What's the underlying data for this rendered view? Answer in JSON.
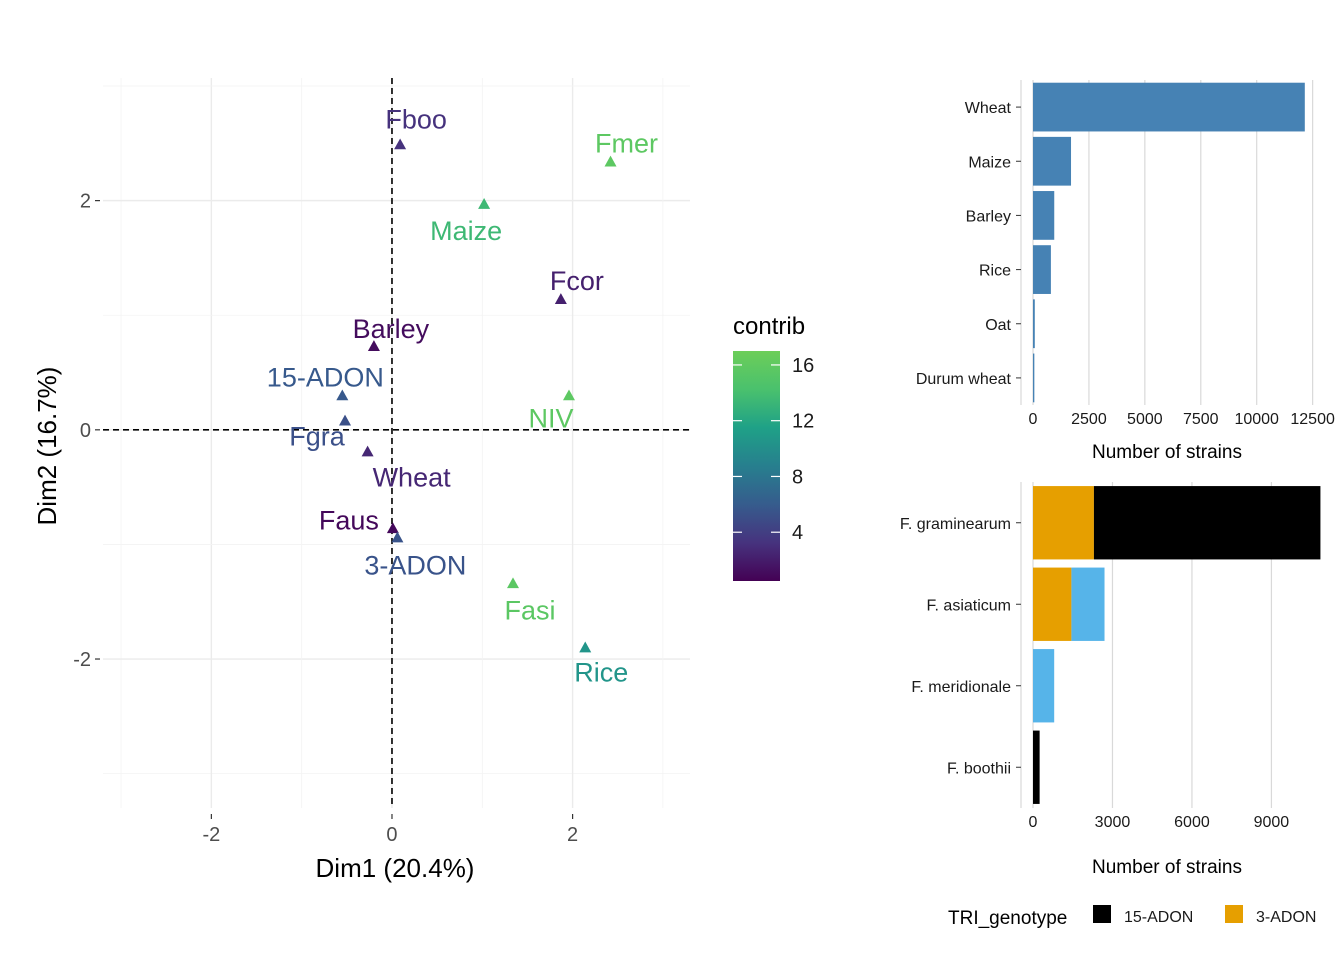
{
  "chart_data": [
    {
      "type": "scatter",
      "xlabel": "Dim1 (20.4%)",
      "ylabel": "Dim2 (16.7%)",
      "xlim": [
        -3.2,
        3.3
      ],
      "ylim": [
        -3.3,
        3.07
      ],
      "xticks": [
        -2,
        0,
        2
      ],
      "yticks": [
        -2,
        0,
        2
      ],
      "xtick_labels": [
        "-2",
        "0",
        "2"
      ],
      "ytick_labels": [
        "-2",
        "0",
        "2"
      ],
      "reference_lines": "dashed at x=0 and y=0",
      "marker": "triangle",
      "points": [
        {
          "label": "Fboo",
          "x": 0.09,
          "y": 2.49,
          "contrib": 3.2
        },
        {
          "label": "Fmer",
          "x": 2.42,
          "y": 2.34,
          "contrib": 15.8
        },
        {
          "label": "Maize",
          "x": 1.02,
          "y": 1.97,
          "contrib": 13.5
        },
        {
          "label": "Fcor",
          "x": 1.87,
          "y": 1.14,
          "contrib": 2.2
        },
        {
          "label": "Barley",
          "x": -0.2,
          "y": 0.73,
          "contrib": 1.1
        },
        {
          "label": "15-ADON",
          "x": -0.55,
          "y": 0.3,
          "contrib": 5.8
        },
        {
          "label": "NIV",
          "x": 1.96,
          "y": 0.3,
          "contrib": 15.8
        },
        {
          "label": "Fgra",
          "x": -0.52,
          "y": 0.08,
          "contrib": 5.2
        },
        {
          "label": "Wheat",
          "x": -0.27,
          "y": -0.19,
          "contrib": 2.6
        },
        {
          "label": "Faus",
          "x": 0.01,
          "y": -0.86,
          "contrib": 0.9
        },
        {
          "label": "3-ADON",
          "x": 0.06,
          "y": -0.94,
          "contrib": 5.4
        },
        {
          "label": "Fasi",
          "x": 1.34,
          "y": -1.34,
          "contrib": 15.6
        },
        {
          "label": "Rice",
          "x": 2.14,
          "y": -1.9,
          "contrib": 10.5
        }
      ],
      "color_legend": {
        "title": "contrib",
        "min": 0.5,
        "max": 17.0,
        "ticks": [
          4,
          8,
          12,
          16
        ],
        "tick_labels": [
          "4",
          "8",
          "12",
          "16"
        ],
        "palette": [
          "#440154",
          "#46337E",
          "#365C8D",
          "#277F8E",
          "#1FA187",
          "#4AC16D",
          "#6CCE59"
        ]
      }
    },
    {
      "type": "bar",
      "orientation": "horizontal",
      "categories": [
        "Wheat",
        "Maize",
        "Barley",
        "Rice",
        "Oat",
        "Durum wheat"
      ],
      "values": [
        12150,
        1700,
        950,
        800,
        80,
        60
      ],
      "xlabel": "Number of strains",
      "xlim": [
        0,
        13500
      ],
      "xticks": [
        0,
        2500,
        5000,
        7500,
        10000,
        12500
      ],
      "xtick_labels": [
        "0",
        "2500",
        "5000",
        "7500",
        "10000",
        "12500"
      ],
      "color": "#4682B4"
    },
    {
      "type": "bar",
      "orientation": "horizontal",
      "stacked": true,
      "categories": [
        "F. graminearum",
        "F. asiaticum",
        "F. meridionale",
        "F. boothii"
      ],
      "series": [
        {
          "name": "3-ADON",
          "values": [
            2300,
            1450,
            0,
            0
          ],
          "color": "#E69F00"
        },
        {
          "name": "15-ADON",
          "values": [
            8550,
            0,
            0,
            250
          ],
          "color": "#000000"
        },
        {
          "name": "",
          "values": [
            0,
            1250,
            800,
            0
          ],
          "color": "#56B4E9"
        }
      ],
      "stack_order": [
        "3-ADON",
        "15-ADON",
        ""
      ],
      "xlabel": "Number of strains",
      "xlim": [
        0,
        11400
      ],
      "xticks": [
        0,
        3000,
        6000,
        9000
      ],
      "xtick_labels": [
        "0",
        "3000",
        "6000",
        "9000"
      ],
      "legend": {
        "title": "TRI_genotype",
        "position": "bottom",
        "entries": [
          {
            "label": "15-ADON",
            "color": "#000000"
          },
          {
            "label": "3-ADON",
            "color": "#E69F00"
          },
          {
            "label": "",
            "color": "#56B4E9"
          }
        ]
      }
    }
  ]
}
